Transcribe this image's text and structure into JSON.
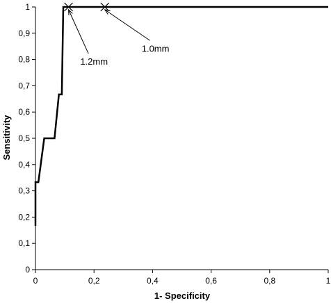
{
  "chart_data": {
    "type": "line",
    "title": "",
    "xlabel": "1- Specificity",
    "ylabel": "Sensitivity",
    "xlim": [
      0,
      1
    ],
    "ylim": [
      0,
      1
    ],
    "grid": false,
    "x_ticks": [
      "0",
      "0,2",
      "0,4",
      "0,6",
      "0,8",
      "1"
    ],
    "x_tick_values": [
      0,
      0.2,
      0.4,
      0.6,
      0.8,
      1
    ],
    "y_ticks": [
      "0",
      "0,1",
      "0,2",
      "0,3",
      "0,4",
      "0,5",
      "0,6",
      "0,7",
      "0,8",
      "0,9",
      "1"
    ],
    "y_tick_values": [
      0,
      0.1,
      0.2,
      0.3,
      0.4,
      0.5,
      0.6,
      0.7,
      0.8,
      0.9,
      1
    ],
    "series": [
      {
        "x": [
          0,
          0,
          0.01,
          0.01,
          0.03,
          0.04,
          0.065,
          0.08,
          0.09,
          0.095,
          0.24,
          1
        ],
        "y": [
          0.167,
          0.333,
          0.333,
          0.333,
          0.5,
          0.5,
          0.5,
          0.667,
          0.667,
          1,
          1,
          1
        ]
      }
    ],
    "markers": [
      {
        "x": 0.113,
        "y": 1
      },
      {
        "x": 0.237,
        "y": 1
      }
    ],
    "annotations": [
      {
        "text": "1.2mm",
        "x": 0.113,
        "y": 1,
        "text_x": 0.2,
        "text_y": 0.78
      },
      {
        "text": "1.0mm",
        "x": 0.237,
        "y": 1,
        "text_x": 0.41,
        "text_y": 0.83
      }
    ]
  }
}
